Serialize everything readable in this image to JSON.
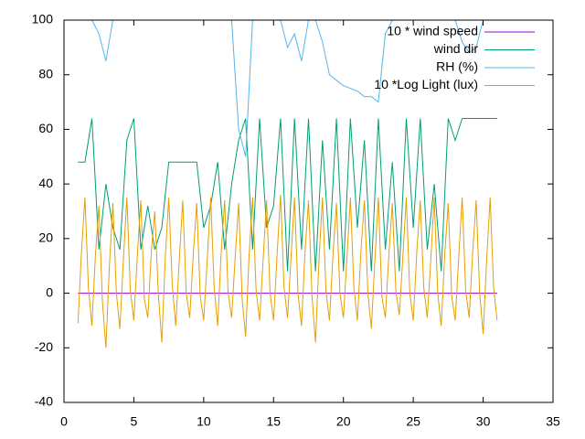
{
  "chart_data": {
    "type": "line",
    "xlim": [
      0,
      35
    ],
    "xticks": [
      0,
      5,
      10,
      15,
      20,
      25,
      30,
      35
    ],
    "ylim": [
      -40,
      100
    ],
    "yticks": [
      -40,
      -20,
      0,
      20,
      40,
      60,
      80,
      100
    ],
    "legend": "top-right",
    "series": [
      {
        "name": "10 * wind speed",
        "color": "#9400d3",
        "x": [
          1,
          31
        ],
        "values": [
          0,
          0
        ]
      },
      {
        "name": "wind dir",
        "color": "#009e73",
        "x": [
          1,
          1.5,
          2,
          2.5,
          3,
          3.5,
          4,
          4.5,
          5,
          5.5,
          6,
          6.5,
          7,
          7.5,
          8,
          8.5,
          9,
          9.5,
          10,
          10.5,
          11,
          11.5,
          12,
          12.5,
          13,
          13.5,
          14,
          14.5,
          15,
          15.5,
          16,
          16.5,
          17,
          17.5,
          18,
          18.5,
          19,
          19.5,
          20,
          20.5,
          21,
          21.5,
          22,
          22.5,
          23,
          23.5,
          24,
          24.5,
          25,
          25.5,
          26,
          26.5,
          27,
          27.5,
          28,
          28.5,
          29,
          29.5,
          30,
          30.5,
          31
        ],
        "values": [
          48,
          48,
          64,
          16,
          40,
          24,
          16,
          56,
          64,
          16,
          32,
          16,
          24,
          48,
          48,
          48,
          48,
          48,
          24,
          32,
          48,
          16,
          40,
          56,
          64,
          16,
          64,
          24,
          32,
          64,
          8,
          64,
          16,
          64,
          8,
          56,
          16,
          64,
          8,
          64,
          24,
          56,
          8,
          64,
          16,
          48,
          8,
          64,
          24,
          64,
          16,
          40,
          8,
          64,
          56,
          64,
          64,
          64,
          64,
          64,
          64
        ]
      },
      {
        "name": "RH (%)",
        "color": "#56b4e9",
        "x": [
          1,
          1.5,
          2,
          2.5,
          3,
          3.5,
          4,
          4.5,
          5,
          5.5,
          6,
          6.5,
          7,
          7.5,
          8,
          8.5,
          9,
          9.5,
          10,
          10.5,
          11,
          11.5,
          12,
          12.5,
          13,
          13.5,
          14,
          14.5,
          15,
          15.5,
          16,
          16.5,
          17,
          17.5,
          18,
          18.5,
          19,
          19.5,
          20,
          20.5,
          21,
          21.5,
          22,
          22.5,
          23,
          23.5,
          24,
          24.5,
          25,
          25.5,
          26,
          26.5,
          27,
          27.5,
          28,
          28.5,
          29,
          29.5,
          30,
          30.5,
          31
        ],
        "values": [
          100,
          100,
          100,
          95,
          85,
          100,
          100,
          100,
          100,
          100,
          100,
          100,
          100,
          100,
          100,
          100,
          100,
          100,
          100,
          100,
          100,
          100,
          100,
          60,
          50,
          100,
          100,
          100,
          100,
          100,
          90,
          95,
          85,
          100,
          100,
          92,
          80,
          78,
          76,
          75,
          74,
          72,
          72,
          70,
          95,
          100,
          100,
          100,
          100,
          100,
          100,
          100,
          100,
          100,
          100,
          92,
          88,
          90,
          100,
          100,
          100
        ]
      },
      {
        "name": "10 *Log Light (lux)",
        "color": "#e69f00",
        "x": [
          1,
          1.25,
          1.5,
          1.75,
          2,
          2.25,
          2.5,
          2.75,
          3,
          3.25,
          3.5,
          3.75,
          4,
          4.25,
          4.5,
          4.75,
          5,
          5.25,
          5.5,
          5.75,
          6,
          6.25,
          6.5,
          6.75,
          7,
          7.25,
          7.5,
          7.75,
          8,
          8.25,
          8.5,
          8.75,
          9,
          9.25,
          9.5,
          9.75,
          10,
          10.25,
          10.5,
          10.75,
          11,
          11.25,
          11.5,
          11.75,
          12,
          12.25,
          12.5,
          12.75,
          13,
          13.25,
          13.5,
          13.75,
          14,
          14.25,
          14.5,
          14.75,
          15,
          15.25,
          15.5,
          15.75,
          16,
          16.25,
          16.5,
          16.75,
          17,
          17.25,
          17.5,
          17.75,
          18,
          18.25,
          18.5,
          18.75,
          19,
          19.25,
          19.5,
          19.75,
          20,
          20.25,
          20.5,
          20.75,
          21,
          21.25,
          21.5,
          21.75,
          22,
          22.25,
          22.5,
          22.75,
          23,
          23.25,
          23.5,
          23.75,
          24,
          24.25,
          24.5,
          24.75,
          25,
          25.25,
          25.5,
          25.75,
          26,
          26.25,
          26.5,
          26.75,
          27,
          27.25,
          27.5,
          27.75,
          28,
          28.25,
          28.5,
          28.75,
          29,
          29.25,
          29.5,
          29.75,
          30,
          30.25,
          30.5,
          30.75,
          31
        ],
        "values": [
          -11,
          15,
          35,
          2,
          -12,
          14,
          32,
          -3,
          -20,
          10,
          33,
          0,
          -13,
          12,
          35,
          1,
          -10,
          14,
          34,
          -2,
          -9,
          15,
          30,
          0,
          -18,
          13,
          35,
          3,
          -12,
          12,
          34,
          0,
          -9,
          14,
          33,
          -1,
          -10,
          12,
          35,
          2,
          -12,
          15,
          34,
          0,
          -9,
          13,
          33,
          -2,
          -16,
          14,
          35,
          1,
          -10,
          12,
          34,
          0,
          -10,
          14,
          36,
          2,
          -9,
          13,
          35,
          0,
          -12,
          15,
          34,
          -1,
          -18,
          12,
          35,
          1,
          -10,
          14,
          33,
          0,
          -9,
          13,
          35,
          2,
          -10,
          15,
          34,
          0,
          -13,
          12,
          35,
          -1,
          -9,
          14,
          33,
          1,
          -8,
          13,
          35,
          0,
          -10,
          15,
          34,
          2,
          -9,
          12,
          35,
          0,
          -12,
          14,
          33,
          -1,
          -10,
          13,
          35,
          1,
          -9,
          15,
          34,
          0,
          -15,
          12,
          35,
          2,
          -10
        ]
      }
    ]
  }
}
